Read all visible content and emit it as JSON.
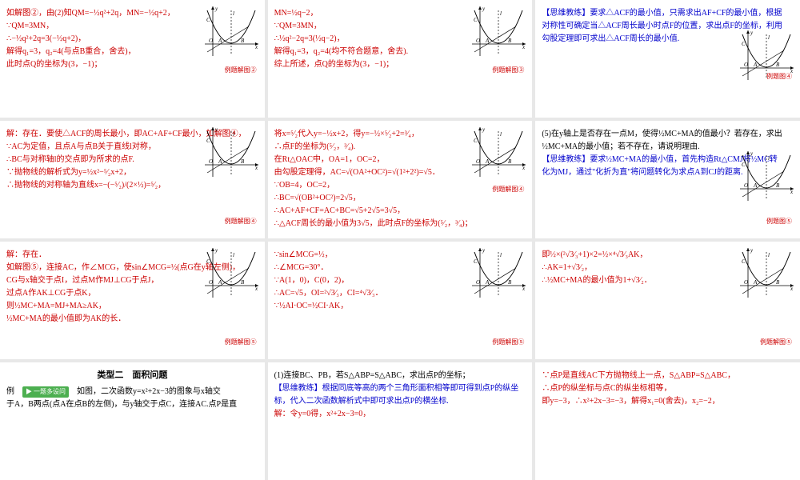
{
  "cells": [
    {
      "lines": [
        {
          "cls": "red",
          "t": "如解图②，由(2)知QM=−½q²+2q，MN=−½q+2，"
        },
        {
          "cls": "red",
          "t": "∵QM=3MN，"
        },
        {
          "cls": "red",
          "t": "∴−½q²+2q=3(−½q+2)，"
        },
        {
          "cls": "red",
          "t": "解得q₁=3，q₂=4(与点B重合，舍去)，"
        },
        {
          "cls": "red",
          "t": "此时点Q的坐标为(3，−1)；"
        }
      ],
      "figlbl": "例题解图②",
      "figTop": "82px"
    },
    {
      "lines": [
        {
          "cls": "red",
          "t": "MN=½q−2，"
        },
        {
          "cls": "red",
          "t": "∵QM=3MN，"
        },
        {
          "cls": "red",
          "t": "∴½q²−2q=3(½q−2)，"
        },
        {
          "cls": "red",
          "t": "解得q₁=3，q₂=4(均不符合题意，舍去)."
        },
        {
          "cls": "red",
          "t": "综上所述，点Q的坐标为(3，−1)；"
        }
      ],
      "figlbl": "例题解图③",
      "figTop": "82px"
    },
    {
      "lines": [
        {
          "cls": "blue",
          "t": "【思维教练】要求△ACF的最小值，只需求出AF+CF的最小值，根据"
        },
        {
          "cls": "blue",
          "t": "对称性可确定当△ACF周长最小时点F的位置，求出点F的坐标，利用"
        },
        {
          "cls": "blue",
          "t": "勾股定理即可求出△ACF周长的最小值."
        }
      ],
      "figlbl": "例题图④",
      "figTop": "90px",
      "figShift": true
    },
    {
      "lines": [
        {
          "cls": "red",
          "t": "解：存在．要使△ACF的周长最小，即AC+AF+CF最小，如解图④，"
        },
        {
          "cls": "red",
          "t": "∵AC为定值，且点A与点B关于直线l对称，"
        },
        {
          "cls": "red",
          "t": "∴BC与对称轴l的交点即为所求的点F."
        },
        {
          "cls": "red",
          "t": "∵抛物线的解析式为y=½x²−⁵⁄₂x+2，"
        },
        {
          "cls": "red",
          "t": "∴抛物线的对称轴为直线x=−(−⁵⁄₂)/(2×½)=⁵⁄₂，"
        }
      ],
      "figlbl": "例题解图④",
      "figTop": "120px"
    },
    {
      "lines": [
        {
          "cls": "red",
          "t": "将x=⁵⁄₂代入y=−½x+2，得y=−½×⁵⁄₂+2=³⁄₄，"
        },
        {
          "cls": "red",
          "t": "∴点F的坐标为(⁵⁄₂，³⁄₄)."
        },
        {
          "cls": "red",
          "t": "在Rt△OAC中，OA=1，OC=2，"
        },
        {
          "cls": "red",
          "t": "由勾股定理得，AC=√(OA²+OC²)=√(1²+2²)=√5．"
        },
        {
          "cls": "red",
          "t": "∵OB=4，OC=2，"
        },
        {
          "cls": "red",
          "t": "∴BC=√(OB²+OC²)=2√5，"
        },
        {
          "cls": "red",
          "t": "∴AC+AF+CF=AC+BC=√5+2√5=3√5，"
        },
        {
          "cls": "red",
          "t": "∴△ACF周长的最小值为3√5，此时点F的坐标为(⁵⁄₂，³⁄₄)；"
        }
      ],
      "figlbl": "例题解图④",
      "figTop": "80px"
    },
    {
      "lines": [
        {
          "cls": "black",
          "t": "(5)在y轴上是否存在一点M，使得½MC+MA的值最小？若存在，求出"
        },
        {
          "cls": "black",
          "t": "½MC+MA的最小值；若不存在，请说明理由."
        },
        {
          "cls": "blue",
          "t": "【思维教练】要求½MC+MA的最小值，首先构造Rt△CMJ将½MC转"
        },
        {
          "cls": "blue",
          "t": "化为MJ，通过\"化折为直\"将问题转化为求点A到CJ的距离."
        }
      ],
      "figlbl": "例题图⑤",
      "figTop": "120px",
      "figShift": true
    },
    {
      "lines": [
        {
          "cls": "red",
          "t": "解：存在．"
        },
        {
          "cls": "red",
          "t": "如解图⑤，连接AC，作∠MCG，使sin∠MCG=½(点G在y轴左侧)，"
        },
        {
          "cls": "red",
          "t": "CG与x轴交于点I，过点M作MJ⊥CG于点J，"
        },
        {
          "cls": "red",
          "t": "过点A作AK⊥CG于点K，"
        },
        {
          "cls": "red",
          "t": "则½MC+MA=MJ+MA≥AK，"
        },
        {
          "cls": "red",
          "t": "½MC+MA的最小值即为AK的长．"
        }
      ],
      "figlbl": "例题解图⑤",
      "figTop": "120px"
    },
    {
      "lines": [
        {
          "cls": "red",
          "t": "∵sin∠MCG=½，"
        },
        {
          "cls": "red",
          "t": "∴∠MCG=30°．"
        },
        {
          "cls": "red",
          "t": "∵A(1，0)，C(0，2)，"
        },
        {
          "cls": "red",
          "t": "∴AC=√5，OI=²√3⁄₃，CI=⁴√3⁄₃．"
        },
        {
          "cls": "red",
          "t": "∵½AI·OC=½CI·AK，"
        }
      ],
      "figlbl": "例题解图⑤",
      "figTop": "120px"
    },
    {
      "lines": [
        {
          "cls": "red",
          "t": "即½×(²√3⁄₃+1)×2=½×⁴√3⁄₃AK，"
        },
        {
          "cls": "red",
          "t": "∴AK=1+√3⁄₂，"
        },
        {
          "cls": "red",
          "t": "∴½MC+MA的最小值为1+√3⁄₂．"
        }
      ],
      "figlbl": "例题解图⑤",
      "figTop": "120px"
    },
    {
      "lines": [
        {
          "cls": "black",
          "t": "",
          "title": "类型二　面积问题"
        },
        {
          "cls": "black",
          "t": "例　",
          "btn": "▶ 一题多设问",
          "after": "　如图，二次函数y=x²+2x−3的图象与x轴交"
        },
        {
          "cls": "black",
          "t": "于A，B两点(点A在点B的左侧)，与y轴交于点C，连接AC.点P是直"
        }
      ]
    },
    {
      "lines": [
        {
          "cls": "black",
          "t": "(1)连接BC、PB，若S△ABP=S△ABC，求出点P的坐标；"
        },
        {
          "cls": "blue",
          "t": "【思维教练】根据同底等高的两个三角形面积相等即可得到点P的纵坐"
        },
        {
          "cls": "blue",
          "t": "标，代入二次函数解析式中即可求出点P的横坐标."
        },
        {
          "cls": "red",
          "t": "解：令y=0得，x²+2x−3=0，"
        }
      ]
    },
    {
      "lines": [
        {
          "cls": "red",
          "t": "∵点P是直线AC下方抛物线上一点，S△ABP=S△ABC，"
        },
        {
          "cls": "red",
          "t": "∴点P的纵坐标与点C的纵坐标相等，"
        },
        {
          "cls": "red",
          "t": "即y=−3，∴x²+2x−3=−3，解得x₁=0(舍去)，x₂=−2，"
        }
      ]
    }
  ]
}
